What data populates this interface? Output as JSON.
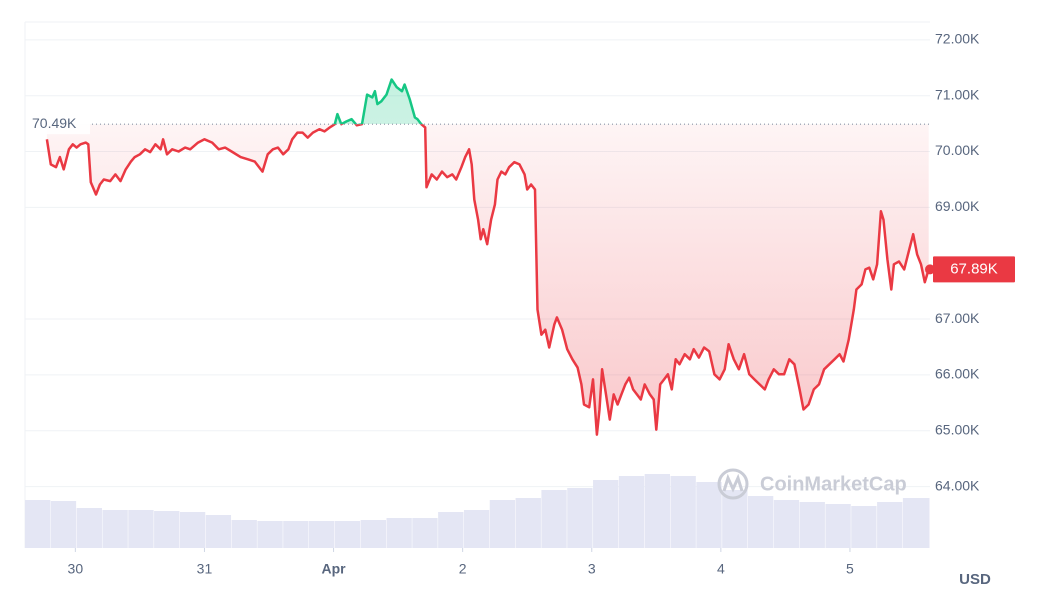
{
  "chart_data": {
    "type": "line",
    "currency": "USD",
    "watermark": "CoinMarketCap",
    "color": "#ea3943",
    "up_color": "#16c784",
    "baseline": {
      "value": 70490,
      "label": "70.49K"
    },
    "current": {
      "value": 67890,
      "label": "67.89K"
    },
    "xlim": [
      -0.39,
      6.62
    ],
    "ylim": [
      62900,
      72320
    ],
    "xticks": [
      {
        "value": 0,
        "label": "30"
      },
      {
        "value": 1,
        "label": "31"
      },
      {
        "value": 2,
        "label": "Apr"
      },
      {
        "value": 3,
        "label": "2"
      },
      {
        "value": 4,
        "label": "3"
      },
      {
        "value": 5,
        "label": "4"
      },
      {
        "value": 6,
        "label": "5"
      }
    ],
    "yticks": [
      {
        "value": 72000,
        "label": "72.00K"
      },
      {
        "value": 71000,
        "label": "71.00K"
      },
      {
        "value": 70000,
        "label": "70.00K"
      },
      {
        "value": 69000,
        "label": "69.00K"
      },
      {
        "value": 67000,
        "label": "67.00K"
      },
      {
        "value": 66000,
        "label": "66.00K"
      },
      {
        "value": 65000,
        "label": "65.00K"
      },
      {
        "value": 64000,
        "label": "64.00K"
      }
    ],
    "x": [
      -0.22,
      -0.19,
      -0.15,
      -0.12,
      -0.09,
      -0.05,
      -0.02,
      0.01,
      0.04,
      0.08,
      0.1,
      0.12,
      0.16,
      0.19,
      0.22,
      0.27,
      0.31,
      0.35,
      0.39,
      0.43,
      0.46,
      0.5,
      0.54,
      0.58,
      0.62,
      0.66,
      0.68,
      0.71,
      0.75,
      0.8,
      0.85,
      0.89,
      0.95,
      1.0,
      1.06,
      1.11,
      1.16,
      1.21,
      1.28,
      1.34,
      1.39,
      1.45,
      1.49,
      1.53,
      1.57,
      1.61,
      1.65,
      1.68,
      1.72,
      1.76,
      1.8,
      1.84,
      1.89,
      1.93,
      1.97,
      2.01,
      2.03,
      2.06,
      2.1,
      2.14,
      2.18,
      2.22,
      2.26,
      2.3,
      2.32,
      2.34,
      2.37,
      2.41,
      2.45,
      2.49,
      2.53,
      2.55,
      2.59,
      2.63,
      2.65,
      2.68,
      2.71,
      2.72,
      2.76,
      2.8,
      2.84,
      2.88,
      2.92,
      2.95,
      2.99,
      3.02,
      3.05,
      3.07,
      3.09,
      3.12,
      3.14,
      3.16,
      3.19,
      3.22,
      3.25,
      3.27,
      3.3,
      3.33,
      3.36,
      3.4,
      3.44,
      3.48,
      3.5,
      3.53,
      3.56,
      3.58,
      3.61,
      3.64,
      3.67,
      3.71,
      3.73,
      3.77,
      3.81,
      3.85,
      3.89,
      3.92,
      3.94,
      3.98,
      4.01,
      4.04,
      4.06,
      4.08,
      4.11,
      4.14,
      4.17,
      4.2,
      4.23,
      4.26,
      4.29,
      4.32,
      4.35,
      4.38,
      4.41,
      4.45,
      4.48,
      4.5,
      4.53,
      4.56,
      4.59,
      4.62,
      4.65,
      4.68,
      4.72,
      4.76,
      4.79,
      4.83,
      4.87,
      4.91,
      4.95,
      4.99,
      5.03,
      5.06,
      5.1,
      5.14,
      5.18,
      5.22,
      5.26,
      5.3,
      5.34,
      5.37,
      5.41,
      5.45,
      5.49,
      5.53,
      5.57,
      5.61,
      5.64,
      5.68,
      5.72,
      5.76,
      5.8,
      5.84,
      5.88,
      5.92,
      5.95,
      5.99,
      6.03,
      6.05,
      6.09,
      6.12,
      6.15,
      6.18,
      6.21,
      6.24,
      6.26,
      6.29,
      6.32,
      6.34,
      6.38,
      6.42,
      6.46,
      6.49,
      6.52,
      6.55,
      6.58,
      6.61
    ],
    "values": [
      70220,
      69770,
      69720,
      69900,
      69680,
      70040,
      70130,
      70070,
      70130,
      70160,
      70130,
      69450,
      69230,
      69410,
      69500,
      69470,
      69590,
      69470,
      69680,
      69820,
      69900,
      69950,
      70040,
      69990,
      70130,
      70040,
      70220,
      69950,
      70040,
      70000,
      70070,
      70040,
      70160,
      70220,
      70160,
      70040,
      70070,
      70000,
      69900,
      69860,
      69820,
      69640,
      69950,
      70040,
      70070,
      69950,
      70040,
      70220,
      70340,
      70340,
      70250,
      70340,
      70400,
      70360,
      70430,
      70490,
      70670,
      70490,
      70540,
      70580,
      70470,
      70490,
      71020,
      70970,
      71080,
      70850,
      70900,
      71020,
      71290,
      71150,
      71080,
      71200,
      70940,
      70610,
      70580,
      70490,
      70430,
      69360,
      69590,
      69500,
      69640,
      69540,
      69590,
      69500,
      69720,
      69900,
      70040,
      69770,
      69140,
      68780,
      68430,
      68610,
      68340,
      68780,
      69050,
      69500,
      69640,
      69590,
      69720,
      69810,
      69770,
      69590,
      69320,
      69410,
      69320,
      67170,
      66720,
      66810,
      66490,
      66900,
      67030,
      66810,
      66460,
      66280,
      66130,
      65830,
      65470,
      65420,
      65920,
      64930,
      65380,
      66100,
      65650,
      65200,
      65650,
      65470,
      65650,
      65830,
      65950,
      65740,
      65650,
      65560,
      65830,
      65650,
      65560,
      65020,
      65830,
      65920,
      66010,
      65740,
      66280,
      66190,
      66370,
      66280,
      66460,
      66310,
      66490,
      66420,
      66010,
      65920,
      66100,
      66550,
      66280,
      66100,
      66370,
      66010,
      65920,
      65830,
      65740,
      65920,
      66100,
      66010,
      66010,
      66280,
      66190,
      65740,
      65380,
      65470,
      65740,
      65830,
      66100,
      66190,
      66280,
      66370,
      66240,
      66630,
      67170,
      67530,
      67620,
      67890,
      67920,
      67710,
      67980,
      68930,
      68780,
      68070,
      67530,
      67980,
      68030,
      67890,
      68250,
      68520,
      68160,
      67980,
      67660,
      67890
    ],
    "volume": {
      "color": "#e4e6f4",
      "x": [
        -0.39,
        -0.19,
        0.01,
        0.21,
        0.41,
        0.61,
        0.81,
        1.01,
        1.21,
        1.41,
        1.61,
        1.81,
        2.01,
        2.21,
        2.41,
        2.61,
        2.81,
        3.01,
        3.21,
        3.41,
        3.61,
        3.81,
        4.01,
        4.21,
        4.41,
        4.61,
        4.81,
        5.01,
        5.21,
        5.41,
        5.61,
        5.81,
        6.01,
        6.21,
        6.41
      ],
      "values": [
        48,
        47,
        40,
        38,
        38,
        37,
        36,
        33,
        28,
        27,
        27,
        27,
        27,
        28,
        30,
        30,
        36,
        38,
        48,
        50,
        58,
        60,
        68,
        72,
        74,
        72,
        66,
        58,
        52,
        48,
        46,
        44,
        42,
        46,
        50
      ]
    }
  }
}
